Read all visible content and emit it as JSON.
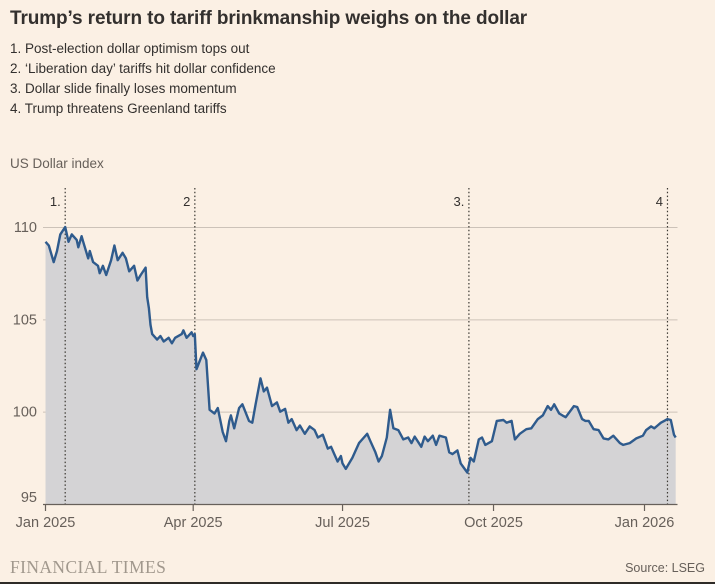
{
  "header": {
    "title": "Trump’s return to tariff brinkmanship weighs on the dollar"
  },
  "annotations": [
    {
      "num": "1.",
      "text": "Post-election dollar optimism tops out"
    },
    {
      "num": "2.",
      "text": "‘Liberation day’ tariffs hit dollar confidence"
    },
    {
      "num": "3.",
      "text": "Dollar slide finally loses momentum"
    },
    {
      "num": "4.",
      "text": "Trump threatens Greenland tariffs"
    }
  ],
  "chart_data": {
    "type": "area",
    "title": "US Dollar index",
    "ylabel": "US Dollar index",
    "xlabel": "",
    "grid": true,
    "legend_position": "none",
    "ylim": [
      95,
      112
    ],
    "y_ticks": [
      95,
      100,
      105,
      110
    ],
    "x_ticks": [
      {
        "label": "Jan 2025",
        "date": "2025-01-01"
      },
      {
        "label": "Apr 2025",
        "date": "2025-04-01"
      },
      {
        "label": "Jul 2025",
        "date": "2025-07-01"
      },
      {
        "label": "Oct 2025",
        "date": "2025-10-01"
      },
      {
        "label": "Jan 2026",
        "date": "2026-01-01"
      }
    ],
    "markers": [
      {
        "label": "1.",
        "date": "2025-01-13"
      },
      {
        "label": "2",
        "date": "2025-04-02"
      },
      {
        "label": "3.",
        "date": "2025-09-16"
      },
      {
        "label": "4",
        "date": "2026-01-15"
      }
    ],
    "colors": {
      "line": "#2f5b8d",
      "fill": "#d4d3d5",
      "grid": "#ccc2b8",
      "axis": "#67605a",
      "marker": "#3c3933",
      "text": "#33302e",
      "background": "#fbf0e4"
    },
    "series": [
      {
        "name": "US Dollar index",
        "points": [
          [
            "2025-01-01",
            109.2
          ],
          [
            "2025-01-03",
            109.0
          ],
          [
            "2025-01-06",
            108.1
          ],
          [
            "2025-01-08",
            108.7
          ],
          [
            "2025-01-10",
            109.6
          ],
          [
            "2025-01-13",
            110.0
          ],
          [
            "2025-01-15",
            109.2
          ],
          [
            "2025-01-17",
            109.6
          ],
          [
            "2025-01-20",
            109.3
          ],
          [
            "2025-01-21",
            108.9
          ],
          [
            "2025-01-23",
            109.5
          ],
          [
            "2025-01-24",
            109.2
          ],
          [
            "2025-01-27",
            108.3
          ],
          [
            "2025-01-28",
            108.7
          ],
          [
            "2025-01-30",
            108.1
          ],
          [
            "2025-02-02",
            107.9
          ],
          [
            "2025-02-03",
            107.5
          ],
          [
            "2025-02-05",
            107.9
          ],
          [
            "2025-02-07",
            107.4
          ],
          [
            "2025-02-10",
            108.2
          ],
          [
            "2025-02-12",
            109.0
          ],
          [
            "2025-02-14",
            108.2
          ],
          [
            "2025-02-17",
            108.6
          ],
          [
            "2025-02-19",
            108.3
          ],
          [
            "2025-02-21",
            107.6
          ],
          [
            "2025-02-24",
            107.9
          ],
          [
            "2025-02-26",
            107.1
          ],
          [
            "2025-02-28",
            107.4
          ],
          [
            "2025-03-03",
            107.8
          ],
          [
            "2025-03-04",
            106.2
          ],
          [
            "2025-03-05",
            105.6
          ],
          [
            "2025-03-06",
            104.7
          ],
          [
            "2025-03-07",
            104.2
          ],
          [
            "2025-03-10",
            103.9
          ],
          [
            "2025-03-12",
            104.1
          ],
          [
            "2025-03-14",
            103.8
          ],
          [
            "2025-03-17",
            104.0
          ],
          [
            "2025-03-19",
            103.7
          ],
          [
            "2025-03-21",
            104.0
          ],
          [
            "2025-03-25",
            104.2
          ],
          [
            "2025-03-26",
            104.4
          ],
          [
            "2025-03-28",
            104.0
          ],
          [
            "2025-03-31",
            104.3
          ],
          [
            "2025-04-01",
            104.1
          ],
          [
            "2025-04-02",
            104.2
          ],
          [
            "2025-04-03",
            102.3
          ],
          [
            "2025-04-07",
            103.2
          ],
          [
            "2025-04-09",
            102.8
          ],
          [
            "2025-04-11",
            100.1
          ],
          [
            "2025-04-14",
            99.9
          ],
          [
            "2025-04-16",
            100.2
          ],
          [
            "2025-04-19",
            98.9
          ],
          [
            "2025-04-21",
            98.4
          ],
          [
            "2025-04-23",
            99.5
          ],
          [
            "2025-04-24",
            99.8
          ],
          [
            "2025-04-26",
            99.1
          ],
          [
            "2025-04-29",
            100.2
          ],
          [
            "2025-05-01",
            100.4
          ],
          [
            "2025-05-05",
            99.5
          ],
          [
            "2025-05-07",
            99.4
          ],
          [
            "2025-05-09",
            100.4
          ],
          [
            "2025-05-12",
            101.8
          ],
          [
            "2025-05-14",
            101.1
          ],
          [
            "2025-05-16",
            101.3
          ],
          [
            "2025-05-19",
            100.3
          ],
          [
            "2025-05-22",
            100.5
          ],
          [
            "2025-05-24",
            100.0
          ],
          [
            "2025-05-27",
            100.15
          ],
          [
            "2025-05-29",
            99.4
          ],
          [
            "2025-05-31",
            99.6
          ],
          [
            "2025-06-03",
            99.0
          ],
          [
            "2025-06-05",
            99.25
          ],
          [
            "2025-06-08",
            98.8
          ],
          [
            "2025-06-11",
            99.2
          ],
          [
            "2025-06-14",
            99.0
          ],
          [
            "2025-06-16",
            98.6
          ],
          [
            "2025-06-19",
            98.75
          ],
          [
            "2025-06-22",
            98.0
          ],
          [
            "2025-06-24",
            98.1
          ],
          [
            "2025-06-26",
            97.7
          ],
          [
            "2025-06-28",
            97.3
          ],
          [
            "2025-06-30",
            97.6
          ],
          [
            "2025-07-01",
            97.2
          ],
          [
            "2025-07-03",
            96.9
          ],
          [
            "2025-07-07",
            97.5
          ],
          [
            "2025-07-09",
            97.9
          ],
          [
            "2025-07-11",
            98.3
          ],
          [
            "2025-07-14",
            98.6
          ],
          [
            "2025-07-16",
            98.8
          ],
          [
            "2025-07-18",
            98.4
          ],
          [
            "2025-07-21",
            97.8
          ],
          [
            "2025-07-23",
            97.3
          ],
          [
            "2025-07-25",
            97.6
          ],
          [
            "2025-07-28",
            98.6
          ],
          [
            "2025-07-30",
            100.1
          ],
          [
            "2025-08-01",
            99.1
          ],
          [
            "2025-08-04",
            99.0
          ],
          [
            "2025-08-07",
            98.5
          ],
          [
            "2025-08-10",
            98.6
          ],
          [
            "2025-08-12",
            98.3
          ],
          [
            "2025-08-14",
            98.65
          ],
          [
            "2025-08-18",
            98.1
          ],
          [
            "2025-08-20",
            98.65
          ],
          [
            "2025-08-22",
            98.4
          ],
          [
            "2025-08-25",
            98.7
          ],
          [
            "2025-08-27",
            98.2
          ],
          [
            "2025-08-29",
            98.7
          ],
          [
            "2025-09-02",
            98.6
          ],
          [
            "2025-09-04",
            97.8
          ],
          [
            "2025-09-06",
            97.7
          ],
          [
            "2025-09-09",
            97.9
          ],
          [
            "2025-09-11",
            97.2
          ],
          [
            "2025-09-13",
            96.95
          ],
          [
            "2025-09-15",
            96.7
          ],
          [
            "2025-09-17",
            97.5
          ],
          [
            "2025-09-19",
            97.3
          ],
          [
            "2025-09-22",
            98.5
          ],
          [
            "2025-09-24",
            98.6
          ],
          [
            "2025-09-26",
            98.2
          ],
          [
            "2025-09-30",
            98.4
          ],
          [
            "2025-10-03",
            99.5
          ],
          [
            "2025-10-07",
            99.55
          ],
          [
            "2025-10-09",
            99.4
          ],
          [
            "2025-10-12",
            99.5
          ],
          [
            "2025-10-14",
            98.5
          ],
          [
            "2025-10-17",
            98.8
          ],
          [
            "2025-10-21",
            99.05
          ],
          [
            "2025-10-24",
            99.1
          ],
          [
            "2025-10-28",
            99.6
          ],
          [
            "2025-10-31",
            99.8
          ],
          [
            "2025-11-03",
            100.3
          ],
          [
            "2025-11-05",
            100.1
          ],
          [
            "2025-11-07",
            100.4
          ],
          [
            "2025-11-10",
            99.9
          ],
          [
            "2025-11-12",
            99.8
          ],
          [
            "2025-11-14",
            99.7
          ],
          [
            "2025-11-19",
            100.3
          ],
          [
            "2025-11-21",
            100.25
          ],
          [
            "2025-11-24",
            99.6
          ],
          [
            "2025-11-26",
            99.5
          ],
          [
            "2025-11-28",
            99.5
          ],
          [
            "2025-12-01",
            99.05
          ],
          [
            "2025-12-04",
            99.0
          ],
          [
            "2025-12-07",
            98.55
          ],
          [
            "2025-12-10",
            98.5
          ],
          [
            "2025-12-13",
            98.7
          ],
          [
            "2025-12-17",
            98.3
          ],
          [
            "2025-12-19",
            98.2
          ],
          [
            "2025-12-23",
            98.3
          ],
          [
            "2025-12-27",
            98.55
          ],
          [
            "2025-12-31",
            98.7
          ],
          [
            "2026-01-02",
            99.0
          ],
          [
            "2026-01-05",
            99.2
          ],
          [
            "2026-01-07",
            99.1
          ],
          [
            "2026-01-09",
            99.25
          ],
          [
            "2026-01-11",
            99.4
          ],
          [
            "2026-01-13",
            99.5
          ],
          [
            "2026-01-15",
            99.6
          ],
          [
            "2026-01-17",
            99.55
          ],
          [
            "2026-01-19",
            98.75
          ],
          [
            "2026-01-20",
            98.6
          ]
        ]
      }
    ]
  },
  "footer": {
    "brand": "FINANCIAL TIMES",
    "source": "Source: LSEG"
  }
}
